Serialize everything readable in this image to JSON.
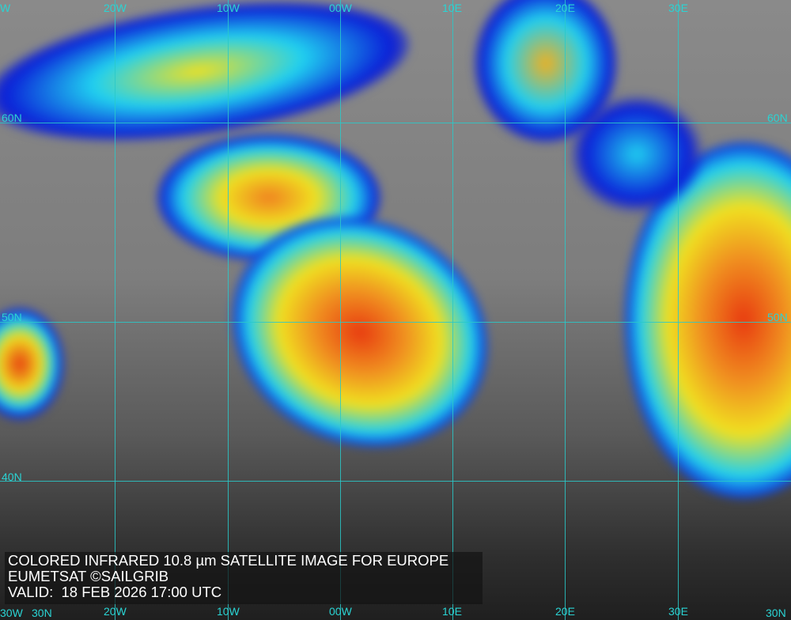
{
  "caption": {
    "title": "COLORED INFRARED 10.8 µm SATELLITE IMAGE FOR EUROPE",
    "credit": "EUMETSAT ©SAILGRIB",
    "valid": "VALID:  18 FEB 2026 17:00 UTC"
  },
  "grid_labels": {
    "top": [
      "W",
      "20W",
      "10W",
      "00W",
      "10E",
      "20E",
      "30E"
    ],
    "bottom": [
      "30W",
      "20W",
      "10W",
      "00W",
      "10E",
      "20E",
      "30E",
      "30N"
    ],
    "left": [
      "60N",
      "50N",
      "40N",
      "30N"
    ],
    "right": [
      "60N",
      "50N"
    ]
  },
  "colors": {
    "grid": "#29c9c9",
    "cold_cloud_red": "#e83a10",
    "cloud_yellow": "#f0e020",
    "cloud_cyan": "#20d0f0",
    "cloud_blue": "#0a1ed8"
  }
}
